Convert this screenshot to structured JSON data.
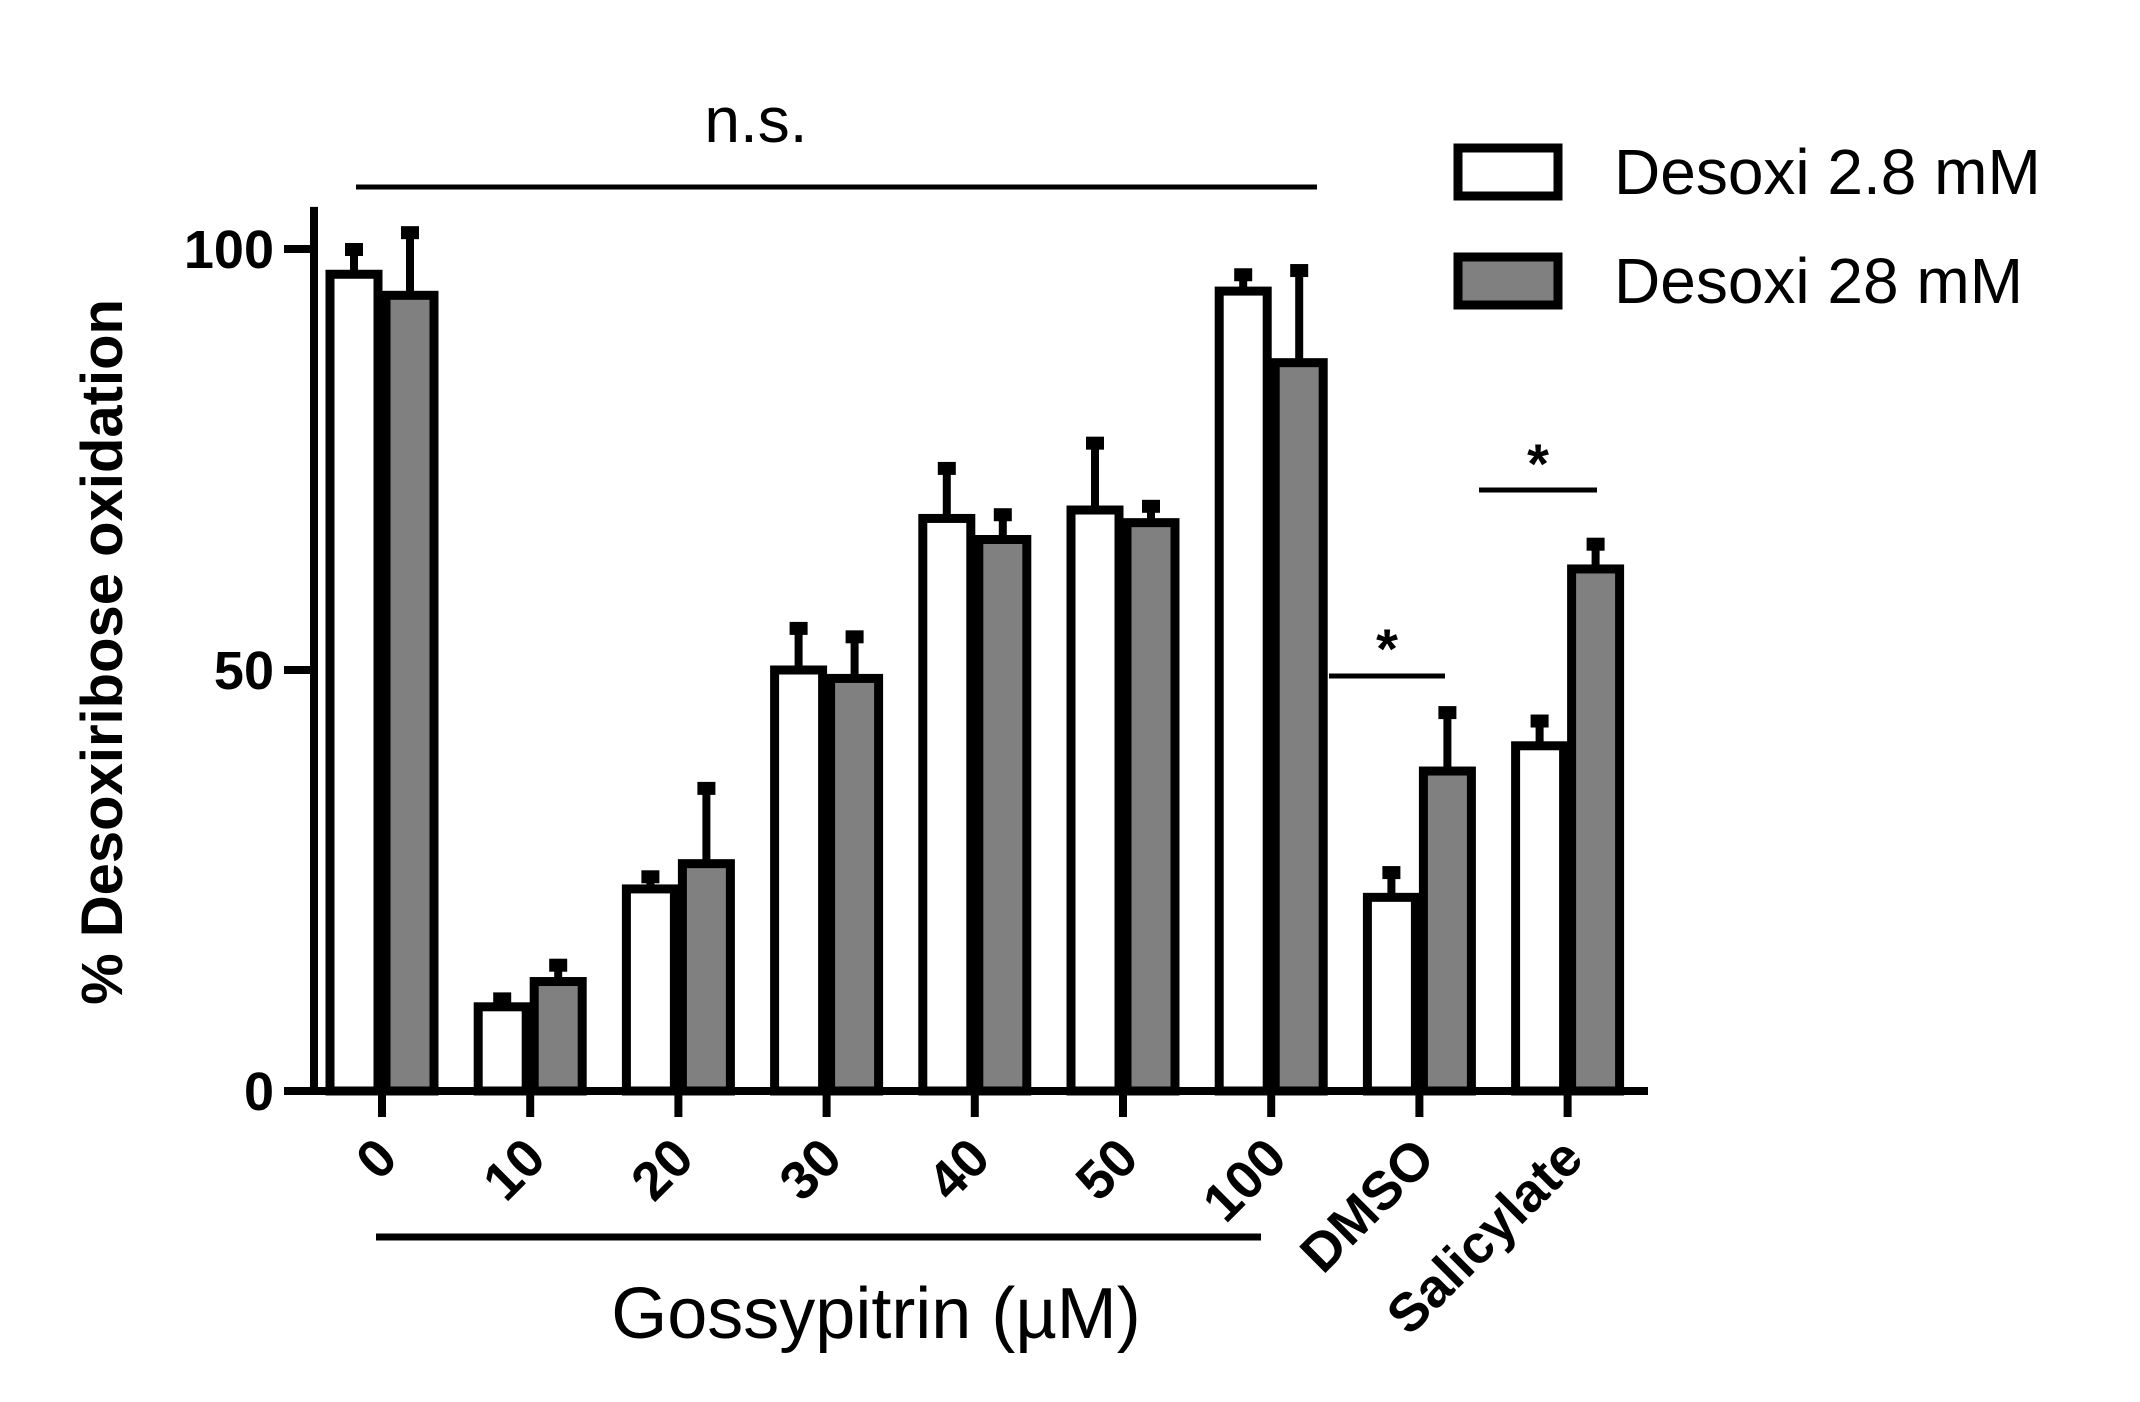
{
  "chart_data": {
    "type": "bar",
    "categories": [
      "0",
      "10",
      "20",
      "30",
      "40",
      "50",
      "100",
      "DMSO",
      "Salicylate"
    ],
    "series": [
      {
        "name": "Desoxi 2.8 mM",
        "color": "#ffffff",
        "values": [
          97,
          10,
          24,
          50,
          68,
          69,
          95,
          23,
          41
        ],
        "errors": [
          3,
          1,
          1.5,
          5,
          6,
          8,
          2,
          3,
          3
        ]
      },
      {
        "name": "Desoxi 28 mM",
        "color": "#808080",
        "values": [
          94.5,
          13,
          27,
          49,
          65.5,
          67.5,
          86.5,
          38,
          62
        ],
        "errors": [
          7.5,
          2,
          9,
          5,
          3,
          2,
          11,
          7,
          3
        ]
      }
    ],
    "ylabel": "% Desoxiribose oxidation",
    "xlabel": "Gossypitrin (µM)",
    "ylim": [
      0,
      105
    ],
    "yticks": [
      0,
      50,
      100
    ],
    "legend_position": "top-right",
    "annotations": {
      "ns": "n.s.",
      "star_dmso": "*",
      "star_salicylate": "*"
    }
  }
}
